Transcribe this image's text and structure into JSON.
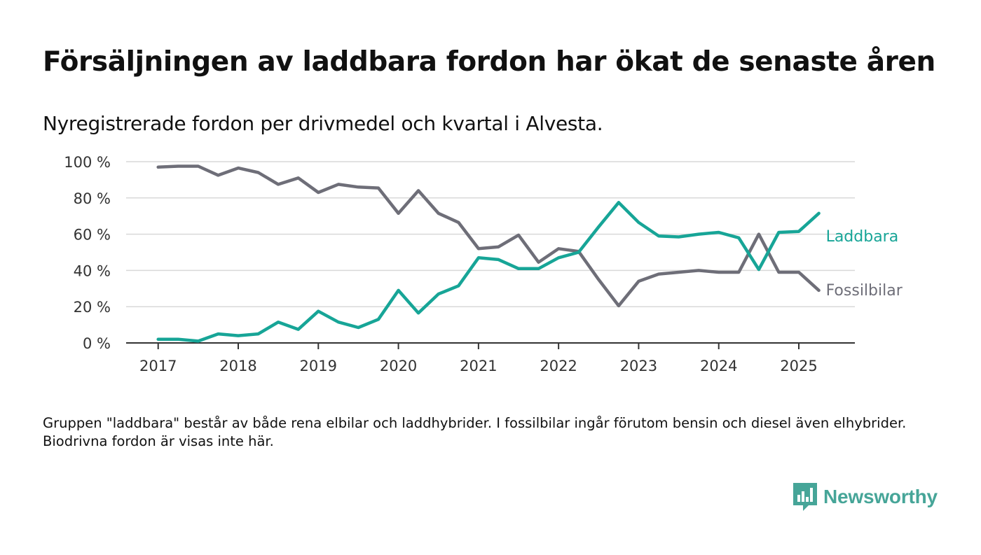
{
  "title": "Försäljningen av laddbara fordon har ökat de senaste åren",
  "subtitle": "Nyregistrerade fordon per drivmedel och kvartal i Alvesta.",
  "footnote": "Gruppen \"laddbara\" består av både rena elbilar och laddhybrider. I fossilbilar ingår förutom bensin och diesel även elhybrider. Biodrivna fordon är visas inte här.",
  "brand": {
    "name": "Newsworthy",
    "icon": "newsworthy-logo-icon",
    "color": "#46a598"
  },
  "chart_data": {
    "type": "line",
    "title": "Försäljningen av laddbara fordon har ökat de senaste åren",
    "subtitle": "Nyregistrerade fordon per drivmedel och kvartal i Alvesta.",
    "xlabel": "",
    "ylabel": "",
    "ylim": [
      0,
      100
    ],
    "yticks": [
      0,
      20,
      40,
      60,
      80,
      100
    ],
    "ytick_labels": [
      "0 %",
      "20 %",
      "40 %",
      "60 %",
      "80 %",
      "100 %"
    ],
    "xlim": [
      2016.6,
      2025.7
    ],
    "xticks": [
      2017,
      2018,
      2019,
      2020,
      2021,
      2022,
      2023,
      2024,
      2025
    ],
    "xtick_labels": [
      "2017",
      "2018",
      "2019",
      "2020",
      "2021",
      "2022",
      "2023",
      "2024",
      "2025"
    ],
    "grid": true,
    "x": [
      2017.0,
      2017.25,
      2017.5,
      2017.75,
      2018.0,
      2018.25,
      2018.5,
      2018.75,
      2019.0,
      2019.25,
      2019.5,
      2019.75,
      2020.0,
      2020.25,
      2020.5,
      2020.75,
      2021.0,
      2021.25,
      2021.5,
      2021.75,
      2022.0,
      2022.25,
      2022.5,
      2022.75,
      2023.0,
      2023.25,
      2023.5,
      2023.75,
      2024.0,
      2024.25,
      2024.5,
      2024.75,
      2025.0,
      2025.25
    ],
    "series": [
      {
        "name": "Laddbara",
        "color": "#17a597",
        "values": [
          2,
          2,
          1,
          5,
          4,
          5,
          11.5,
          7.5,
          17.5,
          11.5,
          8.5,
          13,
          29,
          16.5,
          27,
          31.5,
          47,
          46,
          41,
          41,
          47,
          50,
          64,
          77.5,
          66.5,
          59,
          58.5,
          60,
          61,
          58,
          40.5,
          61,
          61.5,
          71.5
        ]
      },
      {
        "name": "Fossilbilar",
        "color": "#6e6e78",
        "values": [
          97,
          97.5,
          97.5,
          92.5,
          96.5,
          94,
          87.5,
          91,
          83,
          87.5,
          86,
          85.5,
          71.5,
          84,
          71.5,
          66.5,
          52,
          53,
          59.5,
          44.5,
          52,
          50.5,
          35,
          20.5,
          34,
          38,
          39,
          40,
          39,
          39,
          60,
          39,
          39,
          29
        ]
      }
    ]
  }
}
